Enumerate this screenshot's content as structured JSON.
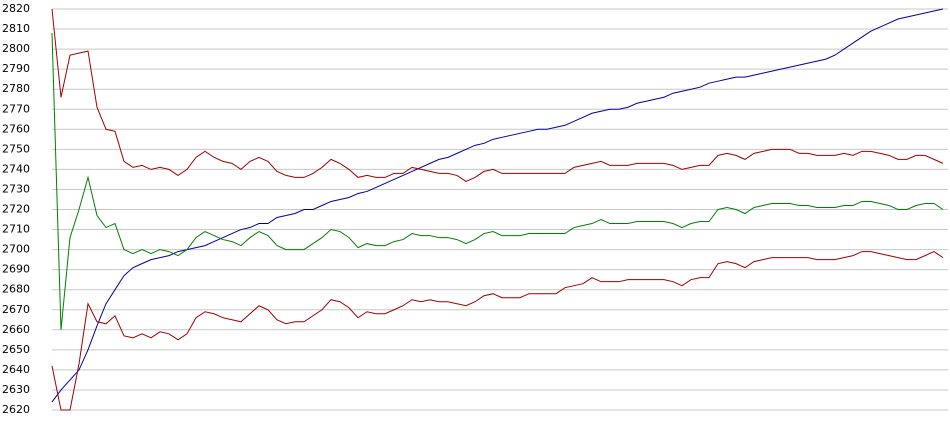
{
  "chart_data": {
    "type": "line",
    "ylim": [
      2620,
      2820
    ],
    "yticks": [
      2620,
      2630,
      2640,
      2650,
      2660,
      2670,
      2680,
      2690,
      2700,
      2710,
      2720,
      2730,
      2740,
      2750,
      2760,
      2770,
      2780,
      2790,
      2800,
      2810,
      2820
    ],
    "grid": true,
    "series": [
      {
        "color": "#0000a0",
        "values": [
          2624,
          2630,
          2635,
          2640,
          2650,
          2662,
          2673,
          2680,
          2687,
          2691,
          2693,
          2695,
          2696,
          2697,
          2699,
          2700,
          2701,
          2702,
          2704,
          2706,
          2708,
          2710,
          2711,
          2713,
          2713,
          2716,
          2717,
          2718,
          2720,
          2720,
          2722,
          2724,
          2725,
          2726,
          2728,
          2729,
          2731,
          2733,
          2735,
          2737,
          2739,
          2741,
          2743,
          2745,
          2746,
          2748,
          2750,
          2752,
          2753,
          2755,
          2756,
          2757,
          2758,
          2759,
          2760,
          2760,
          2761,
          2762,
          2764,
          2766,
          2768,
          2769,
          2770,
          2770,
          2771,
          2773,
          2774,
          2775,
          2776,
          2778,
          2779,
          2780,
          2781,
          2783,
          2784,
          2785,
          2786,
          2786,
          2787,
          2788,
          2789,
          2790,
          2791,
          2792,
          2793,
          2794,
          2795,
          2797,
          2800,
          2803,
          2806,
          2809,
          2811,
          2813,
          2815,
          2816,
          2817,
          2818,
          2819,
          2820
        ]
      },
      {
        "color": "#008000",
        "values": [
          2808,
          2660,
          2706,
          2720,
          2736,
          2717,
          2711,
          2713,
          2700,
          2698,
          2700,
          2698,
          2700,
          2699,
          2697,
          2700,
          2706,
          2709,
          2707,
          2705,
          2704,
          2702,
          2706,
          2709,
          2707,
          2702,
          2700,
          2700,
          2700,
          2703,
          2706,
          2710,
          2709,
          2706,
          2701,
          2703,
          2702,
          2702,
          2704,
          2705,
          2708,
          2707,
          2707,
          2706,
          2706,
          2705,
          2703,
          2705,
          2708,
          2709,
          2707,
          2707,
          2707,
          2708,
          2708,
          2708,
          2708,
          2708,
          2711,
          2712,
          2713,
          2715,
          2713,
          2713,
          2713,
          2714,
          2714,
          2714,
          2714,
          2713,
          2711,
          2713,
          2714,
          2714,
          2720,
          2721,
          2720,
          2718,
          2721,
          2722,
          2723,
          2723,
          2723,
          2722,
          2722,
          2721,
          2721,
          2721,
          2722,
          2722,
          2724,
          2724,
          2723,
          2722,
          2720,
          2720,
          2722,
          2723,
          2723,
          2720
        ]
      },
      {
        "color": "#a00000",
        "values": [
          2820,
          2776,
          2797,
          2798,
          2799,
          2771,
          2760,
          2759,
          2744,
          2741,
          2742,
          2740,
          2741,
          2740,
          2737,
          2740,
          2746,
          2749,
          2746,
          2744,
          2743,
          2740,
          2744,
          2746,
          2744,
          2739,
          2737,
          2736,
          2736,
          2738,
          2741,
          2745,
          2743,
          2740,
          2736,
          2737,
          2736,
          2736,
          2738,
          2738,
          2741,
          2740,
          2739,
          2738,
          2738,
          2737,
          2734,
          2736,
          2739,
          2740,
          2738,
          2738,
          2738,
          2738,
          2738,
          2738,
          2738,
          2738,
          2741,
          2742,
          2743,
          2744,
          2742,
          2742,
          2742,
          2743,
          2743,
          2743,
          2743,
          2742,
          2740,
          2741,
          2742,
          2742,
          2747,
          2748,
          2747,
          2745,
          2748,
          2749,
          2750,
          2750,
          2750,
          2748,
          2748,
          2747,
          2747,
          2747,
          2748,
          2747,
          2749,
          2749,
          2748,
          2747,
          2745,
          2745,
          2747,
          2747,
          2745,
          2743
        ]
      },
      {
        "color": "#a00000",
        "values": [
          2642,
          2620,
          2620,
          2643,
          2673,
          2664,
          2663,
          2667,
          2657,
          2656,
          2658,
          2656,
          2659,
          2658,
          2655,
          2658,
          2666,
          2669,
          2668,
          2666,
          2665,
          2664,
          2668,
          2672,
          2670,
          2665,
          2663,
          2664,
          2664,
          2667,
          2670,
          2675,
          2674,
          2671,
          2666,
          2669,
          2668,
          2668,
          2670,
          2672,
          2675,
          2674,
          2675,
          2674,
          2674,
          2673,
          2672,
          2674,
          2677,
          2678,
          2676,
          2676,
          2676,
          2678,
          2678,
          2678,
          2678,
          2681,
          2682,
          2683,
          2686,
          2684,
          2684,
          2684,
          2685,
          2685,
          2685,
          2685,
          2685,
          2684,
          2682,
          2685,
          2686,
          2686,
          2693,
          2694,
          2693,
          2691,
          2694,
          2695,
          2696,
          2696,
          2696,
          2696,
          2696,
          2695,
          2695,
          2695,
          2696,
          2697,
          2699,
          2699,
          2698,
          2697,
          2696,
          2695,
          2695,
          2697,
          2699,
          2696
        ]
      }
    ]
  }
}
